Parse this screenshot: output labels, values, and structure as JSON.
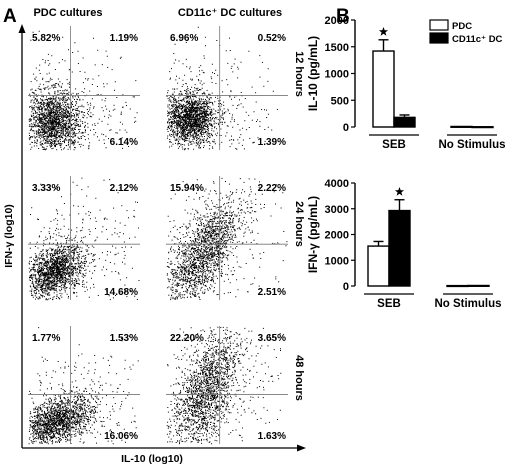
{
  "panels": {
    "a": "A",
    "b": "B"
  },
  "flow": {
    "column_titles": [
      "PDC cultures",
      "CD11c⁺ DC cultures"
    ],
    "row_labels": [
      "12 hours",
      "24 hours",
      "48 hours"
    ],
    "xlabel": "IL-10 (log10)",
    "ylabel": "IFN-γ (log10)",
    "plots": [
      {
        "tl": "5.82%",
        "tr": "1.19%",
        "br": "6.14%"
      },
      {
        "tl": "6.96%",
        "tr": "0.52%",
        "br": "1.39%"
      },
      {
        "tl": "3.33%",
        "tr": "2.12%",
        "br": "14.68%"
      },
      {
        "tl": "15.94%",
        "tr": "2.22%",
        "br": "2.51%"
      },
      {
        "tl": "1.77%",
        "tr": "1.53%",
        "br": "16.06%"
      },
      {
        "tl": "22.20%",
        "tr": "3.65%",
        "br": "1.63%"
      }
    ]
  },
  "chart_data": [
    {
      "type": "bar",
      "ylabel": "IL-10 (pg/mL)",
      "categories": [
        "SEB",
        "No Stimulus"
      ],
      "series": [
        {
          "name": "PDC",
          "values": [
            1420,
            10
          ],
          "errors": [
            210,
            5
          ]
        },
        {
          "name": "CD11c⁺ DC",
          "values": [
            180,
            5
          ],
          "errors": [
            45,
            3
          ]
        }
      ],
      "ylim": [
        0,
        2000
      ],
      "yticks": [
        0,
        500,
        1000,
        1500,
        2000
      ],
      "significance": [
        "★"
      ],
      "legend_position": "top-right",
      "colors": {
        "PDC": "#ffffff",
        "CD11c⁺ DC": "#000000"
      }
    },
    {
      "type": "bar",
      "ylabel": "IFN-γ (pg/mL)",
      "categories": [
        "SEB",
        "No Stimulus"
      ],
      "series": [
        {
          "name": "PDC",
          "values": [
            1550,
            15
          ],
          "errors": [
            180,
            5
          ]
        },
        {
          "name": "CD11c⁺ DC",
          "values": [
            2930,
            20
          ],
          "errors": [
            420,
            5
          ]
        }
      ],
      "ylim": [
        0,
        4000
      ],
      "yticks": [
        0,
        1000,
        2000,
        3000,
        4000
      ],
      "significance": [
        "★"
      ],
      "colors": {
        "PDC": "#ffffff",
        "CD11c⁺ DC": "#000000"
      }
    }
  ]
}
